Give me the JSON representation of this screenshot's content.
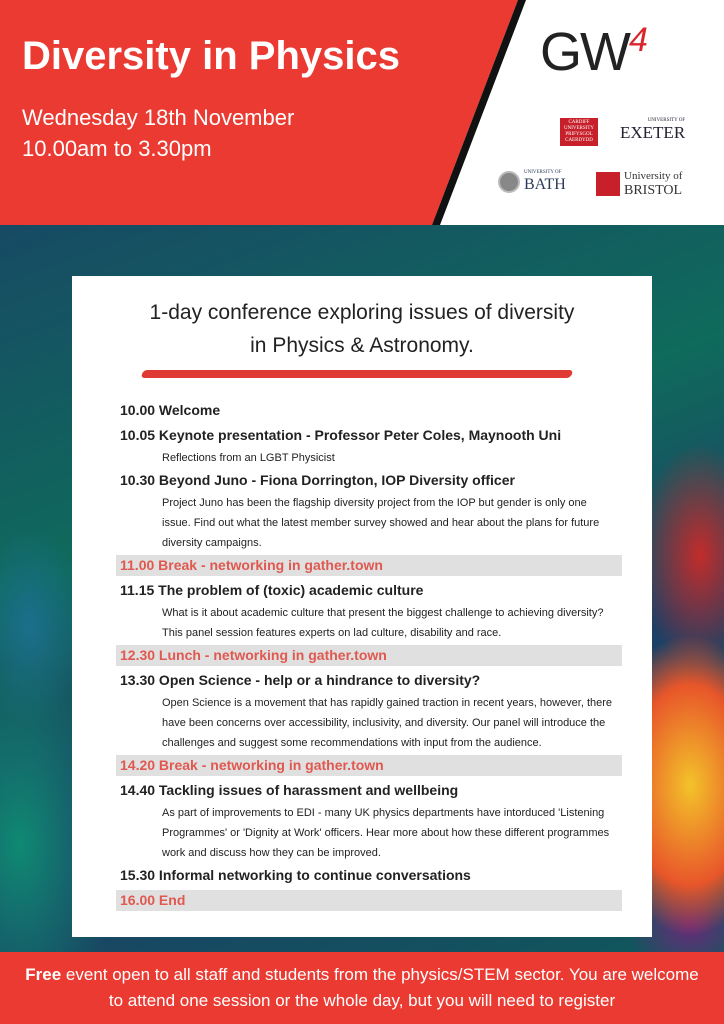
{
  "header": {
    "title": "Diversity in Physics",
    "date": "Wednesday 18th November",
    "time": "10.00am to 3.30pm"
  },
  "logos": {
    "gw4": "GW",
    "gw4_sup": "4",
    "cardiff": "CARDIFF UNIVERSITY PRIFYSGOL CAERDYDD",
    "exeter_small": "UNIVERSITY OF",
    "exeter": "EXETER",
    "bath_small": "UNIVERSITY OF",
    "bath": "BATH",
    "bristol_1": "University of",
    "bristol_2": "BRISTOL"
  },
  "colors": {
    "accent": "#ea3a32",
    "break_text": "#e0584f"
  },
  "intro": {
    "line1": "1-day conference exploring issues of diversity",
    "line2": "in Physics & Astronomy."
  },
  "schedule": [
    {
      "title": "10.00 Welcome"
    },
    {
      "title": "10.05 Keynote presentation - Professor Peter Coles, Maynooth Uni",
      "desc": "Reflections from an LGBT Physicist"
    },
    {
      "title": "10.30 Beyond Juno - Fiona Dorrington, IOP Diversity officer",
      "desc": "Project Juno has been the flagship diversity project from the IOP but gender is only one issue. Find out what the latest member survey showed and hear about the plans for future diversity campaigns."
    },
    {
      "break": "11.00 Break - networking in gather.town"
    },
    {
      "title": "11.15 The problem of (toxic) academic culture",
      "desc": "What is it about academic culture that present the biggest challenge to achieving diversity? This panel session features experts on lad culture, disability and race."
    },
    {
      "break": "12.30 Lunch - networking in gather.town"
    },
    {
      "title": "13.30 Open Science - help or a hindrance to diversity?",
      "desc": "Open Science is a movement that has rapidly gained traction in recent years, however, there have been concerns over accessibility, inclusivity, and diversity. Our panel will introduce the challenges and suggest some recommendations with input from the audience."
    },
    {
      "break": "14.20 Break - networking in gather.town"
    },
    {
      "title": "14.40 Tackling issues of harassment and wellbeing",
      "desc": "As part of improvements to EDI - many UK physics departments have intorduced 'Listening Programmes' or 'Dignity at Work' officers. Hear more about how these different programmes work and discuss how they can be improved."
    },
    {
      "title": "15.30 Informal networking to continue conversations"
    },
    {
      "break": "16.00 End"
    }
  ],
  "footer": {
    "bold": "Free",
    "text": " event open to all staff and students from the physics/STEM sector. You are welcome to attend one session or the whole day, but you will need to register"
  }
}
